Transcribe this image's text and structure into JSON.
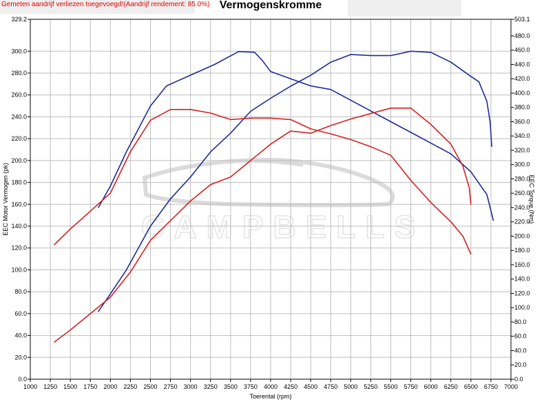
{
  "header": {
    "note": "Gemeten aandrijf verliezen toegevoegd!(Aandrijf rendement: 85.0%)",
    "title": "Vermogenskromme"
  },
  "colors": {
    "blue_series": "#1e2a96",
    "red_series": "#d42020",
    "grid": "#bdbdbd"
  },
  "chart_data": {
    "type": "line",
    "title": "Vermogenskromme",
    "xlabel": "Toerental (rpm)",
    "ylabel_left": "EEC Motor Vermogen (pk)",
    "ylabel_right": "EEC Torque (Nm)",
    "xlim": [
      1000,
      7000
    ],
    "ylim_left": [
      0,
      329.2
    ],
    "ylim_right": [
      0,
      503.1
    ],
    "grid": true,
    "x_ticks": [
      "1000",
      "1250",
      "1500",
      "1750",
      "2000",
      "2250",
      "2500",
      "2750",
      "3000",
      "3250",
      "3500",
      "3750",
      "4000",
      "4250",
      "4500",
      "4750",
      "5000",
      "5250",
      "5500",
      "5750",
      "6000",
      "6250",
      "6500",
      "6750",
      "7000"
    ],
    "y_ticks_left": [
      "0.0",
      "20.0",
      "40.0",
      "60.0",
      "80.0",
      "100.0",
      "120.0",
      "140.0",
      "160.0",
      "180.0",
      "200.0",
      "220.0",
      "240.0",
      "260.0",
      "280.0",
      "300.0",
      "329.2"
    ],
    "y_ticks_right": [
      "0.0",
      "20.0",
      "40.0",
      "60.0",
      "80.0",
      "100.0",
      "120.0",
      "140.0",
      "160.0",
      "180.0",
      "200.0",
      "220.0",
      "240.0",
      "260.0",
      "280.0",
      "300.0",
      "320.0",
      "340.0",
      "360.0",
      "380.0",
      "400.0",
      "420.0",
      "440.0",
      "460.0",
      "480.0",
      "503.1"
    ],
    "series": [
      {
        "color": "blue",
        "axis": "right",
        "kind": "torque",
        "x": [
          1850,
          2000,
          2200,
          2500,
          2700,
          3000,
          3300,
          3600,
          3800,
          3900,
          4000,
          4250,
          4500,
          4750,
          5000,
          5250,
          5500,
          5750,
          6000,
          6250,
          6500,
          6700,
          6780
        ],
        "y": [
          240,
          270,
          318,
          382,
          410,
          425,
          440,
          458,
          457,
          445,
          430,
          420,
          410,
          405,
          390,
          375,
          360,
          345,
          330,
          315,
          290,
          258,
          222
        ]
      },
      {
        "color": "blue",
        "axis": "left",
        "kind": "power",
        "x": [
          1850,
          2000,
          2200,
          2500,
          2750,
          3000,
          3250,
          3500,
          3750,
          4000,
          4250,
          4500,
          4750,
          5000,
          5250,
          5500,
          5750,
          6000,
          6250,
          6500,
          6600,
          6700,
          6740,
          6760
        ],
        "y": [
          62,
          78,
          100,
          140,
          165,
          185,
          208,
          225,
          245,
          257,
          268,
          278,
          290,
          297,
          296,
          296,
          300,
          299,
          290,
          277,
          272,
          254,
          235,
          213
        ]
      },
      {
        "color": "red",
        "axis": "right",
        "kind": "torque",
        "x": [
          1300,
          1500,
          1750,
          2000,
          2250,
          2500,
          2750,
          3000,
          3250,
          3500,
          3750,
          4000,
          4250,
          4500,
          4750,
          5000,
          5250,
          5500,
          5750,
          6000,
          6250,
          6400,
          6500
        ],
        "y": [
          188,
          210,
          235,
          260,
          318,
          362,
          377,
          377,
          372,
          363,
          365,
          365,
          363,
          350,
          343,
          335,
          325,
          313,
          278,
          247,
          220,
          200,
          175
        ]
      },
      {
        "color": "red",
        "axis": "left",
        "kind": "power",
        "x": [
          1300,
          1500,
          1750,
          2000,
          2250,
          2500,
          2750,
          3000,
          3250,
          3500,
          3750,
          4000,
          4250,
          4500,
          4750,
          5000,
          5250,
          5500,
          5750,
          6000,
          6250,
          6400,
          6480,
          6500
        ],
        "y": [
          34,
          45,
          60,
          75,
          98,
          127,
          145,
          163,
          178,
          185,
          200,
          215,
          227,
          225,
          232,
          238,
          243,
          248,
          248,
          233,
          215,
          195,
          175,
          160
        ]
      }
    ]
  }
}
